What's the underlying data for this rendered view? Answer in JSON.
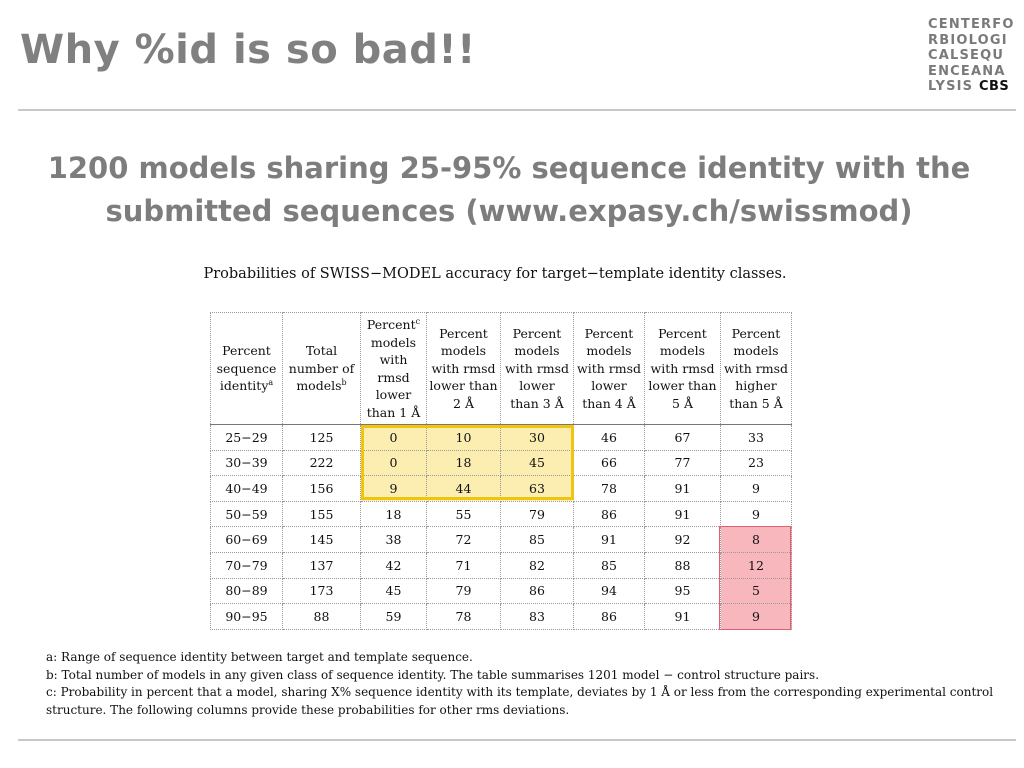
{
  "title": "Why %id is so bad!!",
  "logo": {
    "lines": [
      "CENTERFO",
      "RBIOLOGI",
      "CALSEQU",
      "ENCEANA"
    ],
    "last_line_prefix": "LYSIS",
    "last_line_bold": "CBS"
  },
  "subtitle": {
    "line1": "1200 models sharing 25-95% sequence identity with the",
    "line2": "submitted sequences (www.expasy.ch/swissmod)"
  },
  "table": {
    "caption": "Probabilities of SWISS−MODEL accuracy for target−template identity classes.",
    "headers": [
      {
        "lines": [
          "Percent",
          "sequence",
          "identity"
        ],
        "sup": "a"
      },
      {
        "lines": [
          "Total",
          "number of",
          "models"
        ],
        "sup": "b"
      },
      {
        "lines": [
          "Percent",
          "models",
          "with",
          "rmsd",
          "lower",
          "than 1 Å"
        ],
        "sup": "c"
      },
      {
        "lines": [
          "Percent",
          "models",
          "with rmsd",
          "lower than",
          "2 Å"
        ],
        "sup": ""
      },
      {
        "lines": [
          "Percent",
          "models",
          "with rmsd",
          "lower",
          "than 3 Å"
        ],
        "sup": ""
      },
      {
        "lines": [
          "Percent",
          "models",
          "with rmsd",
          "lower",
          "than 4 Å"
        ],
        "sup": ""
      },
      {
        "lines": [
          "Percent",
          "models",
          "with rmsd",
          "lower than",
          "5 Å"
        ],
        "sup": ""
      },
      {
        "lines": [
          "Percent",
          "models",
          "with rmsd",
          "higher",
          "than 5 Å"
        ],
        "sup": ""
      }
    ],
    "rows": [
      [
        "25−29",
        "125",
        "0",
        "10",
        "30",
        "46",
        "67",
        "33"
      ],
      [
        "30−39",
        "222",
        "0",
        "18",
        "45",
        "66",
        "77",
        "23"
      ],
      [
        "40−49",
        "156",
        "9",
        "44",
        "63",
        "78",
        "91",
        "9"
      ],
      [
        "50−59",
        "155",
        "18",
        "55",
        "79",
        "86",
        "91",
        "9"
      ],
      [
        "60−69",
        "145",
        "38",
        "72",
        "85",
        "91",
        "92",
        "8"
      ],
      [
        "70−79",
        "137",
        "42",
        "71",
        "82",
        "85",
        "88",
        "12"
      ],
      [
        "80−89",
        "173",
        "45",
        "79",
        "86",
        "94",
        "95",
        "5"
      ],
      [
        "90−95",
        "88",
        "59",
        "78",
        "83",
        "86",
        "91",
        "9"
      ]
    ],
    "highlights": {
      "yellow_rows": [
        0,
        1,
        2
      ],
      "yellow_cols": [
        2,
        3,
        4
      ],
      "red_rows": [
        4,
        5,
        6,
        7
      ],
      "red_cols": [
        7
      ]
    }
  },
  "footnotes": {
    "a": "a: Range of sequence identity between target and template sequence.",
    "b": "b: Total number of models in any given class of sequence identity. The table summarises 1201 model − control structure pairs.",
    "c": "c: Probability in percent that a model, sharing X% sequence identity with its template, deviates by 1 Å or less from the corresponding experimental control structure. The following columns provide these probabilities for other rms deviations."
  },
  "colors": {
    "title": "#808080",
    "subtitle": "#7d7d7d",
    "highlight_yellow": "#fbeeb0",
    "highlight_yellow_border": "#f1c40f",
    "highlight_red": "#f7b7bd",
    "rule": "#c8c8c8"
  }
}
